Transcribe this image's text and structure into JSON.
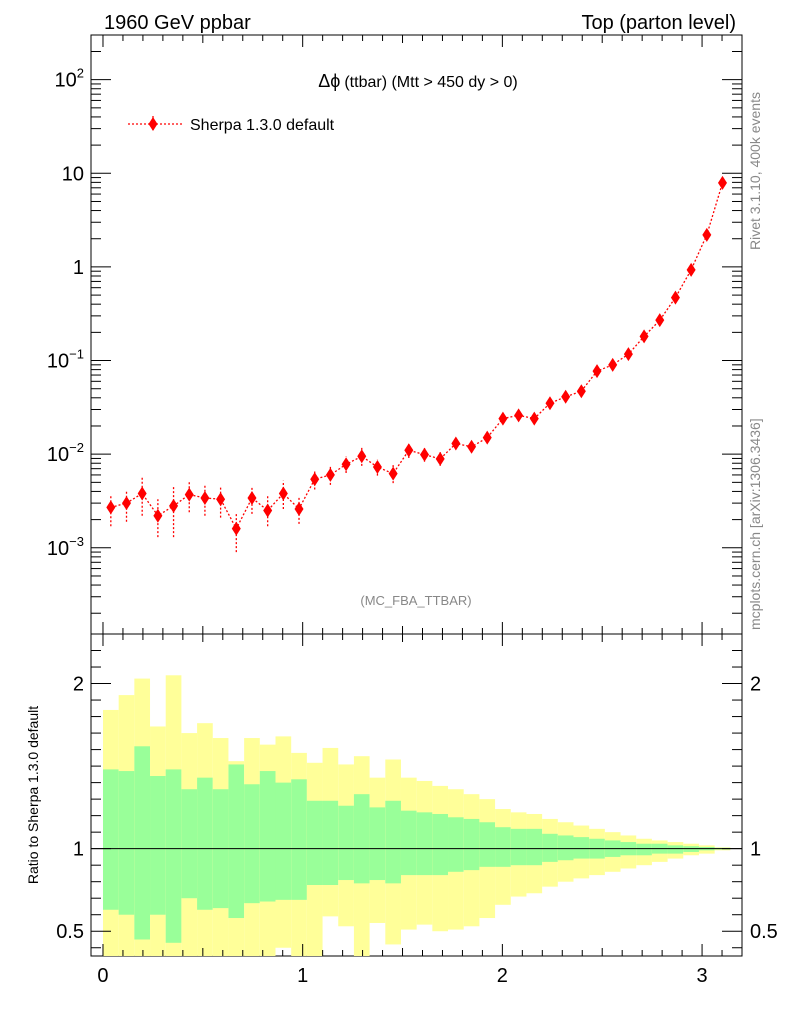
{
  "header": {
    "left": "1960 GeV ppbar",
    "right": "Top (parton level)"
  },
  "side_labels": {
    "rivet": "Rivet 3.1.10,  400k events",
    "mcplots": "mcplots.cern.ch [arXiv:1306.3436]"
  },
  "chart_data": {
    "type": "scatter",
    "title_symbol": "Δϕ",
    "title": "(ttbar) (Mtt > 450 dy > 0)",
    "analysis_label": "(MC_FBA_TTBAR)",
    "legend": {
      "label": "Sherpa 1.3.0 default",
      "color": "#ff0000",
      "placement": "top-left"
    },
    "xlim": [
      -0.06,
      3.2
    ],
    "ylim_log": [
      0.00012,
      300
    ],
    "x_ticks": [
      {
        "v": 0,
        "label": "0"
      },
      {
        "v": 1,
        "label": "1"
      },
      {
        "v": 2,
        "label": "2"
      },
      {
        "v": 3,
        "label": "3"
      }
    ],
    "y_ticks": [
      {
        "v": 0.001,
        "base": "10",
        "exp": "−3"
      },
      {
        "v": 0.01,
        "base": "10",
        "exp": "−2"
      },
      {
        "v": 0.1,
        "base": "10",
        "exp": "−1"
      },
      {
        "v": 1,
        "base": "1",
        "exp": ""
      },
      {
        "v": 10,
        "base": "10",
        "exp": ""
      },
      {
        "v": 100,
        "base": "10",
        "exp": "2"
      }
    ],
    "series": [
      {
        "name": "Sherpa 1.3.0 default",
        "color": "#ff0000",
        "x": [
          0.0393,
          0.1178,
          0.1963,
          0.2749,
          0.3534,
          0.432,
          0.5105,
          0.589,
          0.6676,
          0.7461,
          0.8247,
          0.9032,
          0.9817,
          1.0603,
          1.1388,
          1.2174,
          1.2959,
          1.3744,
          1.453,
          1.5315,
          1.6101,
          1.6886,
          1.7671,
          1.8457,
          1.9242,
          2.0028,
          2.0813,
          2.1598,
          2.2384,
          2.3169,
          2.3955,
          2.474,
          2.5525,
          2.6311,
          2.7096,
          2.7882,
          2.8667,
          2.9452,
          3.0238,
          3.1023
        ],
        "y": [
          0.0027,
          0.003,
          0.0038,
          0.0022,
          0.0028,
          0.0037,
          0.0034,
          0.0033,
          0.0016,
          0.0034,
          0.0025,
          0.0038,
          0.0026,
          0.0054,
          0.006,
          0.0078,
          0.0095,
          0.0073,
          0.0062,
          0.011,
          0.0099,
          0.0089,
          0.013,
          0.012,
          0.015,
          0.024,
          0.026,
          0.024,
          0.035,
          0.041,
          0.047,
          0.077,
          0.09,
          0.117,
          0.181,
          0.27,
          0.47,
          0.93,
          2.2,
          7.9
        ],
        "y_low": [
          0.0017,
          0.0019,
          0.0022,
          0.0013,
          0.0013,
          0.0024,
          0.0022,
          0.0021,
          0.0009,
          0.0023,
          0.0017,
          0.0026,
          0.0018,
          0.0042,
          0.0047,
          0.0063,
          0.0075,
          0.0059,
          0.0049,
          0.0091,
          0.0083,
          0.0075,
          0.0112,
          0.0104,
          0.0133,
          0.0214,
          0.0235,
          0.0216,
          0.0322,
          0.0382,
          0.0442,
          0.0727,
          0.0855,
          0.1119,
          0.1742,
          0.2611,
          0.4571,
          0.9085,
          2.162,
          7.83
        ],
        "y_high": [
          0.0037,
          0.0041,
          0.0058,
          0.0033,
          0.0045,
          0.0051,
          0.0047,
          0.0046,
          0.0024,
          0.0045,
          0.0036,
          0.0052,
          0.0035,
          0.0066,
          0.0074,
          0.0094,
          0.0118,
          0.0088,
          0.0077,
          0.0131,
          0.0116,
          0.0105,
          0.0149,
          0.0137,
          0.0168,
          0.0268,
          0.0287,
          0.0265,
          0.0379,
          0.0439,
          0.0499,
          0.0814,
          0.0945,
          0.1223,
          0.1879,
          0.2791,
          0.4831,
          0.9518,
          2.238,
          7.97
        ]
      }
    ],
    "ratio": {
      "ylabel": "Ratio to Sherpa 1.3.0 default",
      "ylim": [
        0.35,
        2.3
      ],
      "y_ticks": [
        {
          "v": 0.5,
          "label": "0.5"
        },
        {
          "v": 1,
          "label": "1"
        },
        {
          "v": 2,
          "label": "2"
        }
      ],
      "reference": 1,
      "band_inner_color": "#99ff99",
      "band_outer_color": "#ffff99",
      "inner_hi": [
        1.48,
        1.47,
        1.62,
        1.44,
        1.48,
        1.36,
        1.43,
        1.36,
        1.51,
        1.39,
        1.47,
        1.4,
        1.42,
        1.29,
        1.29,
        1.26,
        1.33,
        1.25,
        1.29,
        1.23,
        1.22,
        1.21,
        1.19,
        1.18,
        1.16,
        1.13,
        1.12,
        1.12,
        1.09,
        1.08,
        1.07,
        1.06,
        1.05,
        1.04,
        1.03,
        1.03,
        1.02,
        1.015,
        1.01,
        1.005
      ],
      "inner_lo": [
        0.63,
        0.6,
        0.45,
        0.6,
        0.43,
        0.7,
        0.63,
        0.64,
        0.58,
        0.67,
        0.68,
        0.69,
        0.69,
        0.78,
        0.78,
        0.81,
        0.79,
        0.81,
        0.79,
        0.84,
        0.84,
        0.84,
        0.86,
        0.87,
        0.89,
        0.89,
        0.9,
        0.9,
        0.92,
        0.93,
        0.94,
        0.94,
        0.95,
        0.96,
        0.96,
        0.97,
        0.97,
        0.98,
        0.99,
        0.995
      ],
      "outer_hi": [
        1.84,
        1.93,
        2.03,
        1.74,
        2.05,
        1.7,
        1.76,
        1.67,
        1.53,
        1.67,
        1.63,
        1.68,
        1.58,
        1.52,
        1.61,
        1.51,
        1.56,
        1.43,
        1.54,
        1.43,
        1.41,
        1.38,
        1.36,
        1.33,
        1.3,
        1.24,
        1.22,
        1.21,
        1.18,
        1.16,
        1.14,
        1.12,
        1.1,
        1.08,
        1.06,
        1.05,
        1.04,
        1.03,
        1.02,
        1.008
      ],
      "outer_lo": [
        0.25,
        0.25,
        0.25,
        0.25,
        0.25,
        0.25,
        0.25,
        0.25,
        0.25,
        0.25,
        0.25,
        0.4,
        0.34,
        0.25,
        0.59,
        0.53,
        0.25,
        0.55,
        0.42,
        0.51,
        0.54,
        0.5,
        0.51,
        0.53,
        0.58,
        0.66,
        0.71,
        0.73,
        0.77,
        0.8,
        0.82,
        0.84,
        0.86,
        0.88,
        0.9,
        0.92,
        0.94,
        0.96,
        0.97,
        0.99
      ]
    }
  }
}
